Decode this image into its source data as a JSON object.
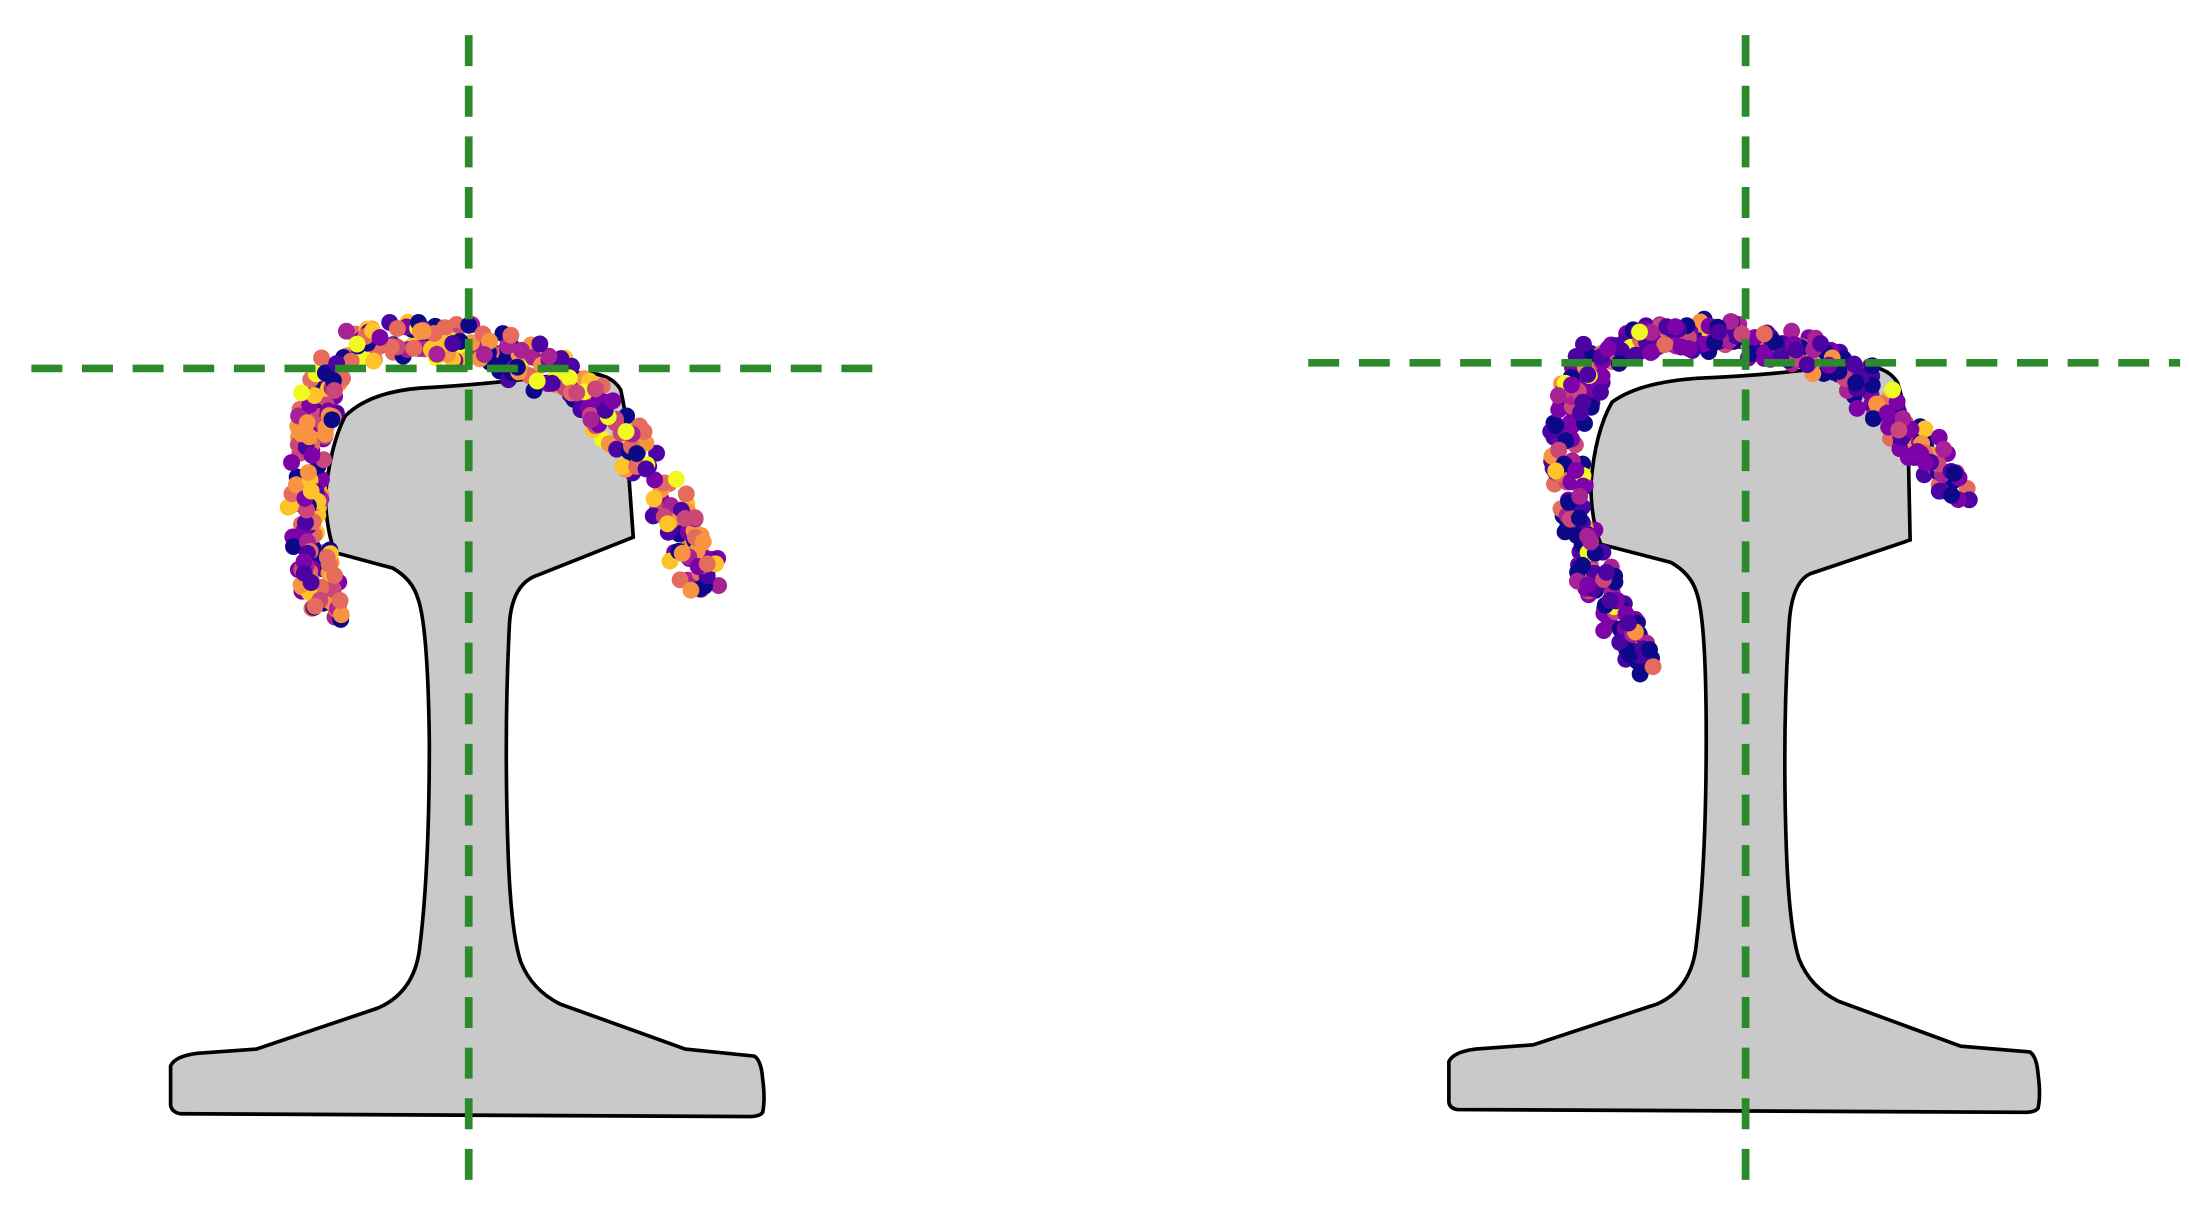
{
  "figure": {
    "panel_count": 2,
    "panels": [
      {
        "id": "left",
        "seed": 17,
        "particle_count": 430,
        "dominant_palette": "mixed-yellow-orange-purple"
      },
      {
        "id": "right",
        "seed": 91,
        "particle_count": 460,
        "dominant_palette": "purple-heavy"
      }
    ]
  },
  "colors": {
    "background": "#ffffff",
    "rail_fill": "#c9c9c9",
    "rail_stroke": "#000000",
    "guide_lines": "#2c8a2c",
    "particle_palette": [
      "#0d0887",
      "#4b03a1",
      "#7d03a8",
      "#a82296",
      "#cb4679",
      "#e56b5d",
      "#f89441",
      "#fdc328",
      "#f0f921"
    ]
  }
}
